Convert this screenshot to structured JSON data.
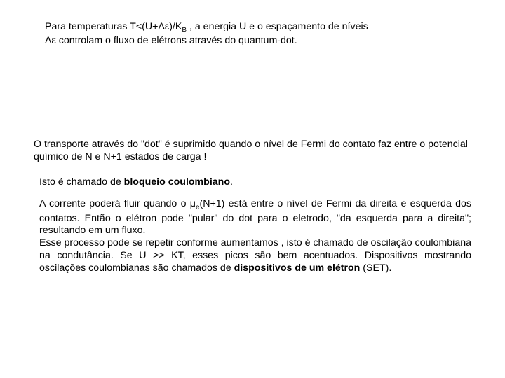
{
  "text": {
    "blk1_l1a": "Para temperaturas T<(U+",
    "blk1_l1_delta1": "Δε",
    "blk1_l1b": ")/K",
    "blk1_l1_sub": "B",
    "blk1_l1c": " , a energia U e o espaçamento de níveis",
    "blk1_l2_delta": "Δε",
    "blk1_l2": " controlam o fluxo de elétrons através do quantum-dot.",
    "blk2": "O transporte através do \"dot\" é suprimido quando o nível de Fermi do contato faz entre o potencial químico de N e N+1 estados de carga !",
    "blk3a": "Isto é chamado de ",
    "blk3u": "bloqueio coulombiano",
    "blk3b": ".",
    "blk4a": "A corrente poderá fluir quando  o  ",
    "blk4_mu": "μ",
    "blk4_sub": "e",
    "blk4b": "(N+1)  está  entre  o  nível  de  Fermi  da direita   e   esquerda  dos  contatos. Então  o elétron pode \"pular\" do dot para o eletrodo, \"da esquerda para a direita\"; resultando em um fluxo.",
    "blk4c1": "Esse   processo   pode   se   repetir   conforme   aumentamos   ",
    "blk4_faded": "       ",
    "blk4c2": ",   isto   é chamado  de  oscilação  coulombiana  na  condutância.  Se  U >>  KT,  esses picos são bem acentuados. Dispositivos mostrando oscilações coulombianas são chamados de ",
    "blk4u": "dispositivos de um elétron",
    "blk4d": " (SET)."
  },
  "style": {
    "page_bg": "#ffffff",
    "text_color": "#000000",
    "faded_color": "#e8d8d8",
    "font_size": 14.2,
    "sub_size": 10,
    "line_height": 1.25
  }
}
